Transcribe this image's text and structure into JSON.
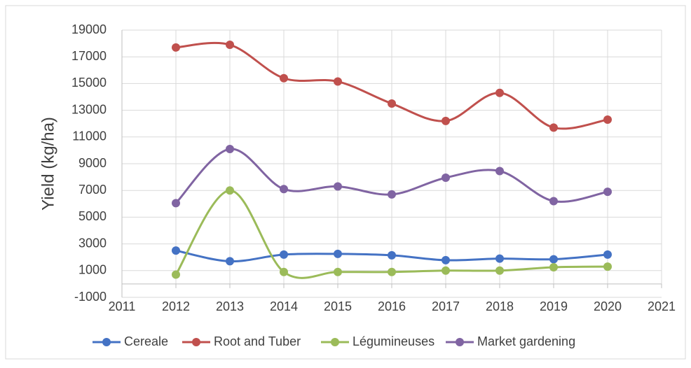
{
  "chart_data": {
    "type": "line",
    "y_label": "Yield (kg/ha)",
    "x": [
      2012,
      2013,
      2014,
      2015,
      2016,
      2017,
      2018,
      2019,
      2020
    ],
    "series": [
      {
        "name": "Cereale",
        "color": "#4472c4",
        "values": [
          2500,
          1700,
          2200,
          2250,
          2150,
          1780,
          1900,
          1850,
          2200
        ]
      },
      {
        "name": "Root and Tuber",
        "color": "#c0504d",
        "values": [
          17700,
          17900,
          15400,
          15150,
          13500,
          12200,
          14300,
          11700,
          12300
        ]
      },
      {
        "name": "Légumineuses",
        "color": "#9bbb59",
        "values": [
          700,
          7000,
          900,
          900,
          900,
          1000,
          1000,
          1250,
          1300
        ]
      },
      {
        "name": "Market gardening",
        "color": "#8064a2",
        "values": [
          6050,
          10100,
          7100,
          7300,
          6700,
          7950,
          8450,
          6200,
          6900
        ]
      }
    ],
    "xlim": [
      2011,
      2021
    ],
    "xticks": [
      2011,
      2012,
      2013,
      2014,
      2015,
      2016,
      2017,
      2018,
      2019,
      2020,
      2021
    ],
    "ylim": [
      -1000,
      19000
    ],
    "yticks": [
      -1000,
      1000,
      3000,
      5000,
      7000,
      9000,
      11000,
      13000,
      15000,
      17000,
      19000
    ],
    "grid": true,
    "smooth": true,
    "legend": "bottom"
  }
}
